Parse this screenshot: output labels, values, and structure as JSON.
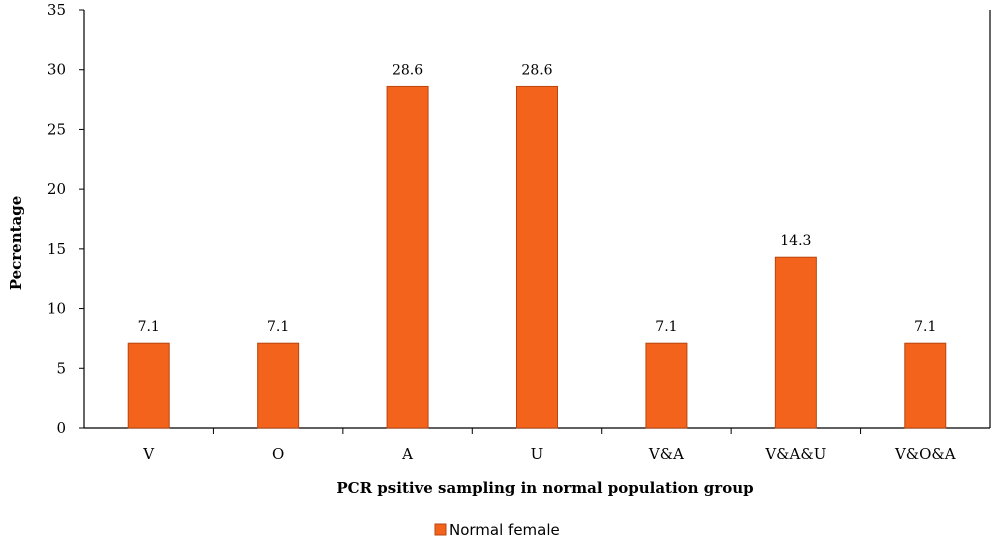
{
  "chart_data": {
    "type": "bar",
    "categories": [
      "V",
      "O",
      "A",
      "U",
      "V&A",
      "V&A&U",
      "V&O&A"
    ],
    "series": [
      {
        "name": "Normal female",
        "values": [
          7.1,
          7.1,
          28.6,
          28.6,
          7.1,
          14.3,
          7.1
        ]
      }
    ],
    "data_labels": [
      "7.1",
      "7.1",
      "28.6",
      "28.6",
      "7.1",
      "14.3",
      "7.1"
    ],
    "xlabel": "PCR psitive sampling in normal population group",
    "ylabel": "Pecrentage",
    "ylim": [
      0,
      35
    ],
    "yticks": [
      0,
      5,
      10,
      15,
      20,
      25,
      30,
      35
    ],
    "grid": false,
    "legend_position": "bottom",
    "colors": {
      "bar_fill": "#f4631c",
      "bar_stroke": "#b9460f",
      "axis": "#000000"
    }
  }
}
